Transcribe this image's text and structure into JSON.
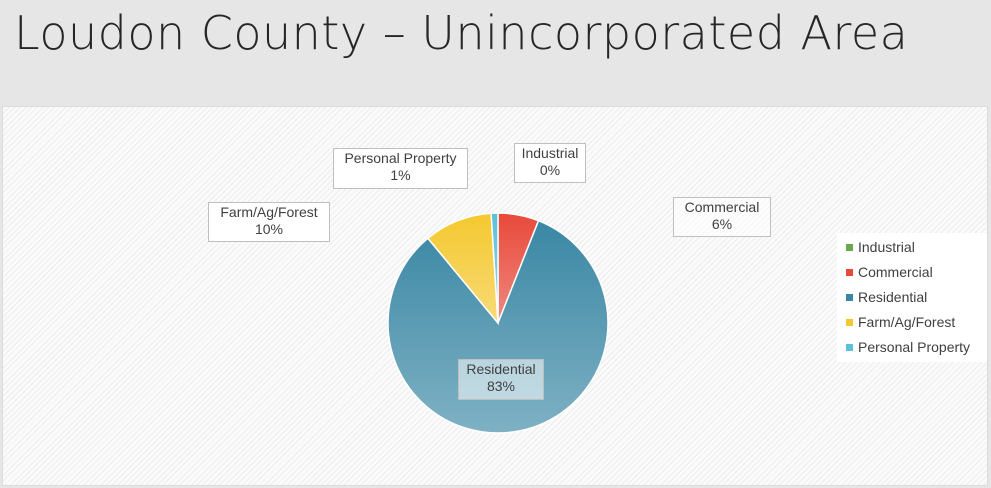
{
  "slide": {
    "title": "Loudon County – Unincorporated Area"
  },
  "chart_data": {
    "type": "pie",
    "categories": [
      "Industrial",
      "Commercial",
      "Residential",
      "Farm/Ag/Forest",
      "Personal Property"
    ],
    "values": [
      0,
      6,
      83,
      10,
      1
    ],
    "data_labels": [
      "0%",
      "6%",
      "83%",
      "10%",
      "1%"
    ],
    "colors": [
      "#6aa84f",
      "#e8493a",
      "#3a87a4",
      "#f4c82e",
      "#5cc0d8"
    ],
    "legend_position": "right"
  }
}
